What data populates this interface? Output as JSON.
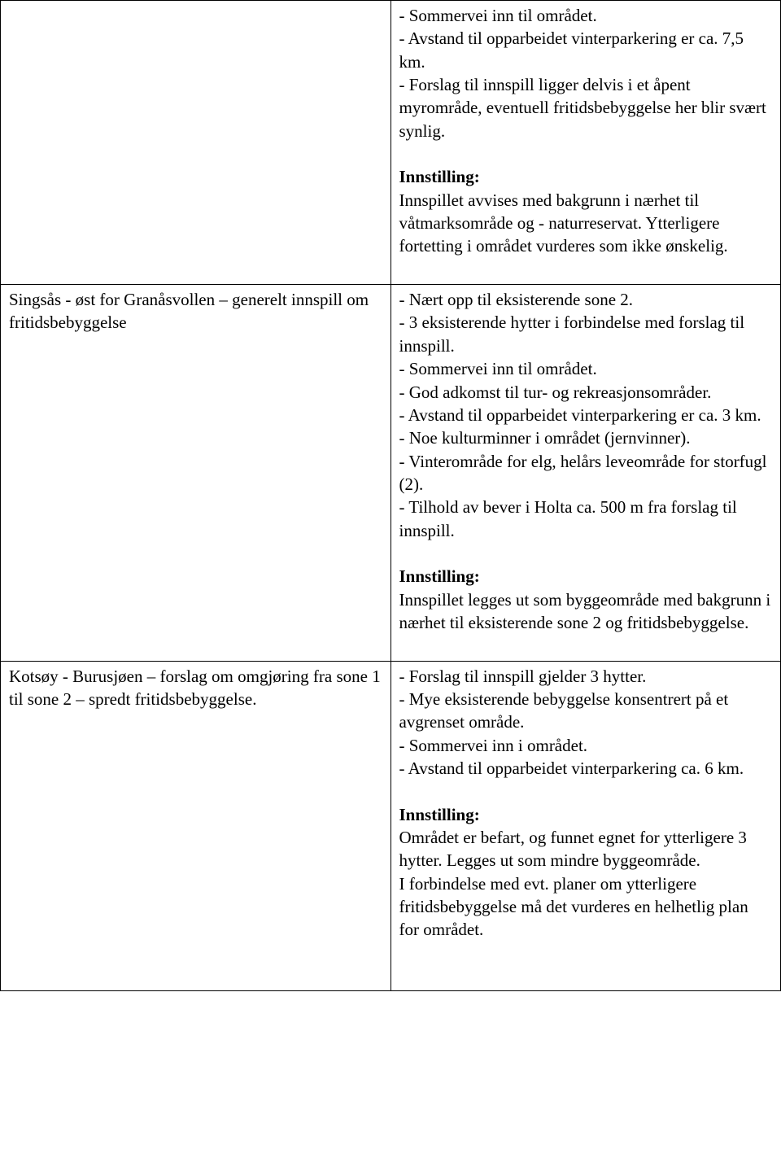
{
  "fonts": {
    "body_pt": 16,
    "family": "Times New Roman"
  },
  "colors": {
    "text": "#000000",
    "border": "#000000",
    "bg": "#ffffff"
  },
  "rows": [
    {
      "left": "",
      "right_blocks": [
        {
          "type": "text",
          "lines": [
            "- Sommervei inn til området.",
            "- Avstand til opparbeidet vinterparkering er ca. 7,5 km.",
            "- Forslag til innspill ligger delvis i et åpent myrområde, eventuell fritidsbebyggelse her blir svært synlig."
          ]
        },
        {
          "type": "spacer"
        },
        {
          "type": "heading",
          "text": "Innstilling:"
        },
        {
          "type": "text",
          "lines": [
            "Innspillet avvises med bakgrunn i nærhet til våtmarksområde og - naturreservat. Ytterligere fortetting i området vurderes som ikke ønskelig."
          ]
        },
        {
          "type": "spacer"
        }
      ]
    },
    {
      "left": "Singsås - øst for Granåsvollen – generelt innspill om fritidsbebyggelse",
      "right_blocks": [
        {
          "type": "text",
          "lines": [
            "- Nært opp til eksisterende sone 2.",
            "- 3 eksisterende hytter i forbindelse med forslag til innspill.",
            "- Sommervei inn til området.",
            "- God adkomst til tur- og rekreasjonsområder.",
            "- Avstand til opparbeidet vinterparkering er ca. 3 km.",
            "- Noe kulturminner i området (jernvinner).",
            "- Vinterområde for elg, helårs leveområde for storfugl (2).",
            "- Tilhold av bever i Holta ca. 500 m fra forslag til innspill."
          ]
        },
        {
          "type": "spacer"
        },
        {
          "type": "heading",
          "text": "Innstilling:"
        },
        {
          "type": "text",
          "lines": [
            "Innspillet legges ut som byggeområde med bakgrunn i nærhet til eksisterende sone 2 og fritidsbebyggelse."
          ]
        },
        {
          "type": "spacer"
        }
      ]
    },
    {
      "left": "Kotsøy - Burusjøen – forslag om omgjøring fra sone 1 til sone 2 – spredt fritidsbebyggelse.",
      "right_blocks": [
        {
          "type": "text",
          "lines": [
            "- Forslag til innspill gjelder 3 hytter.",
            "- Mye eksisterende bebyggelse konsentrert på et avgrenset område.",
            "- Sommervei inn i området.",
            "- Avstand til opparbeidet vinterparkering ca. 6 km."
          ]
        },
        {
          "type": "spacer"
        },
        {
          "type": "heading",
          "text": "Innstilling:"
        },
        {
          "type": "text",
          "lines": [
            "Området er befart, og funnet egnet for ytterligere 3 hytter. Legges ut som mindre byggeområde.",
            "I forbindelse med evt. planer om ytterligere fritidsbebyggelse må det vurderes en helhetlig plan for området."
          ]
        },
        {
          "type": "spacer"
        },
        {
          "type": "spacer"
        }
      ]
    }
  ]
}
